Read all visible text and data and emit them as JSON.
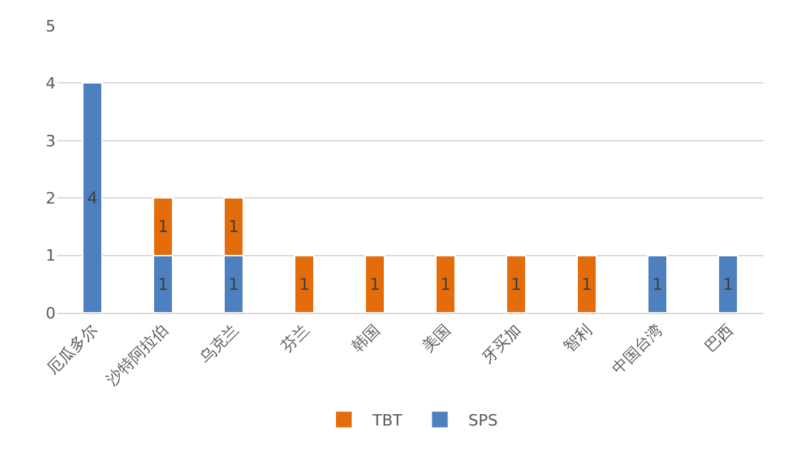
{
  "chart_data": {
    "type": "bar",
    "stacked": true,
    "categories": [
      "厄瓜多尔",
      "沙特阿拉伯",
      "乌克兰",
      "芬兰",
      "韩国",
      "美国",
      "牙买加",
      "智利",
      "中国台湾",
      "巴西"
    ],
    "series": [
      {
        "name": "SPS",
        "color": "#4e7fbf",
        "values": [
          4,
          1,
          1,
          null,
          null,
          null,
          null,
          null,
          1,
          1
        ]
      },
      {
        "name": "TBT",
        "color": "#e46c0a",
        "values": [
          null,
          1,
          1,
          1,
          1,
          1,
          1,
          1,
          null,
          null
        ]
      }
    ],
    "ylim": [
      0,
      5
    ],
    "yticks": [
      0,
      1,
      2,
      3,
      4,
      5
    ],
    "grid": "y",
    "legend": "bottom",
    "data_labels": true
  }
}
